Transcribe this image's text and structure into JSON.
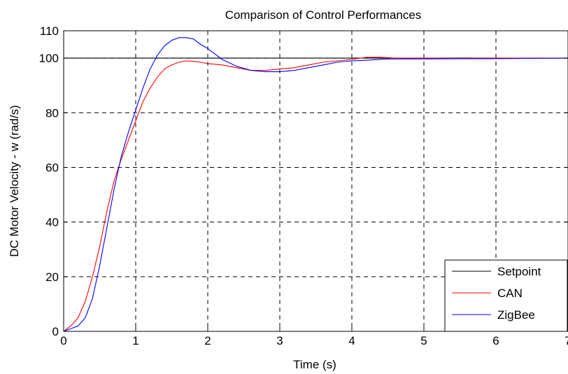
{
  "chart_data": {
    "type": "line",
    "title": "Comparison of Control Performances",
    "xlabel": "Time (s)",
    "ylabel": "DC Motor Velocity - w (rad/s)",
    "xlim": [
      0,
      7
    ],
    "ylim": [
      0,
      110
    ],
    "xticks": [
      0,
      1,
      2,
      3,
      4,
      5,
      6,
      7
    ],
    "yticks": [
      0,
      20,
      40,
      60,
      80,
      100,
      110
    ],
    "grid": true,
    "legend_position": "bottom-right",
    "series": [
      {
        "name": "Setpoint",
        "color": "#000000",
        "x": [
          0,
          7
        ],
        "y": [
          100,
          100
        ]
      },
      {
        "name": "CAN",
        "color": "#ff0000",
        "x": [
          0,
          0.1,
          0.2,
          0.3,
          0.4,
          0.5,
          0.6,
          0.7,
          0.8,
          0.9,
          1.0,
          1.1,
          1.2,
          1.3,
          1.4,
          1.5,
          1.6,
          1.7,
          1.8,
          1.9,
          2.0,
          2.2,
          2.4,
          2.6,
          2.8,
          3.0,
          3.2,
          3.4,
          3.6,
          3.8,
          4.0,
          4.2,
          4.4,
          4.6,
          5.0,
          5.5,
          6.0,
          6.5,
          7.0
        ],
        "y": [
          0,
          2,
          5,
          11,
          20,
          31,
          44,
          55,
          63,
          70,
          77,
          84,
          89,
          93,
          96,
          97.5,
          98.5,
          99,
          98.8,
          98.5,
          98,
          97.5,
          96.5,
          95.5,
          95.5,
          96,
          96.5,
          97.5,
          98.5,
          99,
          99.5,
          100.3,
          100.3,
          100,
          100,
          99.9,
          100,
          100,
          100
        ]
      },
      {
        "name": "ZigBee",
        "color": "#0000ff",
        "x": [
          0,
          0.1,
          0.2,
          0.3,
          0.4,
          0.5,
          0.6,
          0.7,
          0.8,
          0.9,
          1.0,
          1.1,
          1.2,
          1.3,
          1.4,
          1.5,
          1.6,
          1.7,
          1.8,
          1.9,
          2.0,
          2.1,
          2.2,
          2.4,
          2.6,
          2.8,
          3.0,
          3.2,
          3.4,
          3.6,
          3.8,
          4.0,
          4.2,
          4.5,
          5.0,
          5.5,
          6.0,
          6.5,
          7.0
        ],
        "y": [
          0,
          1,
          2,
          5,
          12,
          24,
          38,
          52,
          64,
          73,
          81,
          89,
          96,
          101,
          104.5,
          106.5,
          107.5,
          107.5,
          107,
          105,
          103.5,
          101.5,
          99.5,
          97,
          95.5,
          95,
          95,
          95.5,
          96.5,
          97.5,
          98.5,
          99,
          99.2,
          99.7,
          99.7,
          99.8,
          99.8,
          99.9,
          100
        ]
      }
    ]
  }
}
